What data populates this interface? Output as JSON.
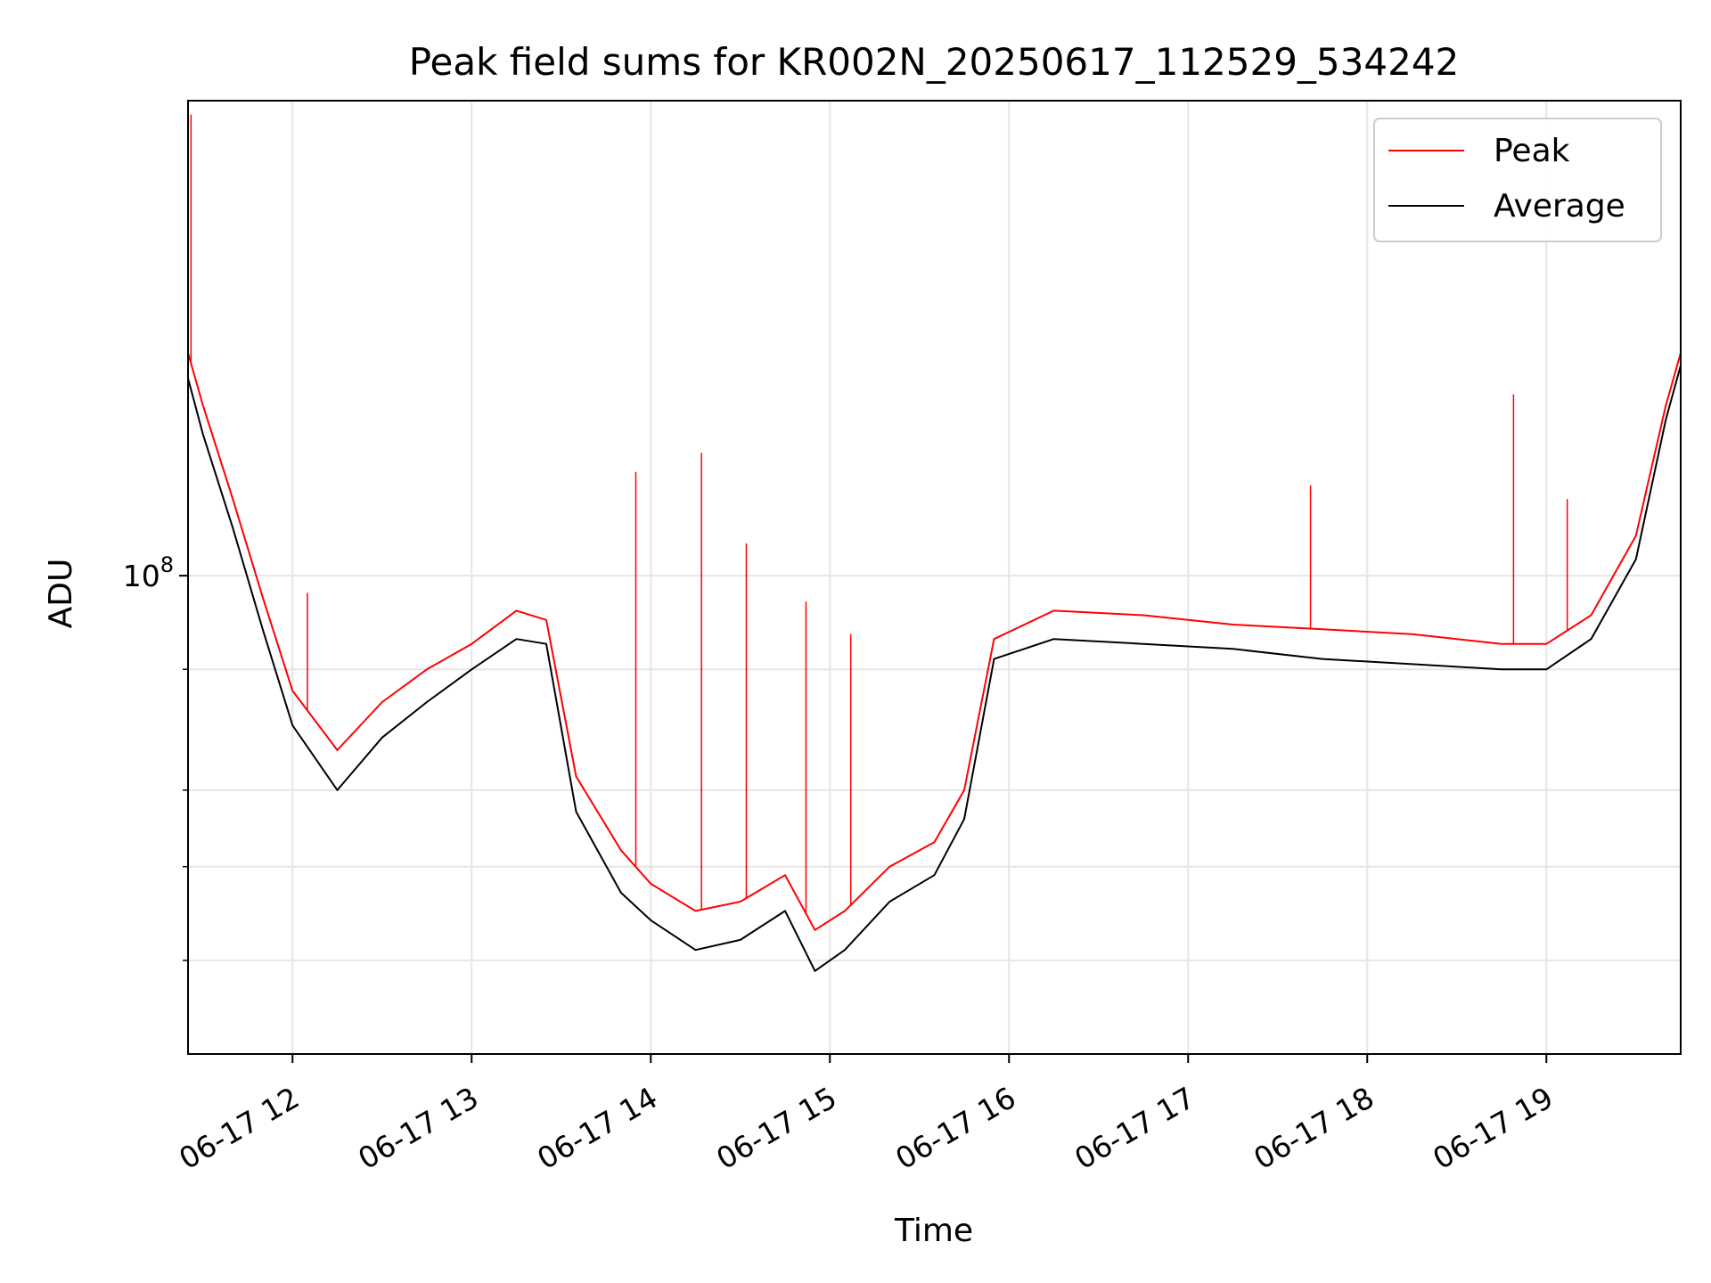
{
  "chart_data": {
    "type": "line",
    "title": "Peak field sums for KR002N_20250617_112529_534242",
    "xlabel": "Time",
    "ylabel": "ADU",
    "yscale": "log",
    "grid": true,
    "legend_position": "top-right",
    "x_tick_labels": [
      "06-17 12",
      "06-17 13",
      "06-17 14",
      "06-17 15",
      "06-17 16",
      "06-17 17",
      "06-17 18",
      "06-17 19"
    ],
    "x_tick_times": [
      "2025-06-17 12:00",
      "2025-06-17 13:00",
      "2025-06-17 14:00",
      "2025-06-17 15:00",
      "2025-06-17 16:00",
      "2025-06-17 17:00",
      "2025-06-17 18:00",
      "2025-06-17 19:00"
    ],
    "xlim": [
      "2025-06-17 11:25",
      "2025-06-17 19:45"
    ],
    "y_tick_label": "10^8",
    "y_tick_value": 100000000,
    "y_minor_ticks": [
      40000000,
      50000000,
      60000000,
      80000000
    ],
    "ylim": [
      32000000,
      310000000
    ],
    "x": [
      "2025-06-17 11:25",
      "2025-06-17 11:30",
      "2025-06-17 11:40",
      "2025-06-17 11:50",
      "2025-06-17 12:00",
      "2025-06-17 12:15",
      "2025-06-17 12:30",
      "2025-06-17 12:45",
      "2025-06-17 13:00",
      "2025-06-17 13:15",
      "2025-06-17 13:25",
      "2025-06-17 13:35",
      "2025-06-17 13:50",
      "2025-06-17 14:00",
      "2025-06-17 14:15",
      "2025-06-17 14:30",
      "2025-06-17 14:45",
      "2025-06-17 14:55",
      "2025-06-17 15:05",
      "2025-06-17 15:20",
      "2025-06-17 15:35",
      "2025-06-17 15:45",
      "2025-06-17 15:55",
      "2025-06-17 16:15",
      "2025-06-17 16:45",
      "2025-06-17 17:15",
      "2025-06-17 17:45",
      "2025-06-17 18:15",
      "2025-06-17 18:45",
      "2025-06-17 19:00",
      "2025-06-17 19:15",
      "2025-06-17 19:30",
      "2025-06-17 19:40",
      "2025-06-17 19:45"
    ],
    "series": [
      {
        "name": "Peak",
        "color": "#ff0000",
        "values": [
          170000000,
          150000000,
          120000000,
          95000000,
          76000000,
          66000000,
          74000000,
          80000000,
          85000000,
          92000000,
          90000000,
          62000000,
          52000000,
          48000000,
          45000000,
          46000000,
          49000000,
          43000000,
          45000000,
          50000000,
          53000000,
          60000000,
          86000000,
          92000000,
          91000000,
          89000000,
          88000000,
          87000000,
          85000000,
          85000000,
          91000000,
          110000000,
          150000000,
          170000000
        ]
      },
      {
        "name": "Average",
        "color": "#000000",
        "values": [
          160000000,
          140000000,
          112000000,
          88000000,
          70000000,
          60000000,
          68000000,
          74000000,
          80000000,
          86000000,
          85000000,
          57000000,
          47000000,
          44000000,
          41000000,
          42000000,
          45000000,
          39000000,
          41000000,
          46000000,
          49000000,
          56000000,
          82000000,
          86000000,
          85000000,
          84000000,
          82000000,
          81000000,
          80000000,
          80000000,
          86000000,
          104000000,
          145000000,
          165000000
        ]
      }
    ],
    "spikes": [
      {
        "series": "Peak",
        "x": "2025-06-17 11:26",
        "value": 300000000
      },
      {
        "series": "Peak",
        "x": "2025-06-17 12:05",
        "value": 96000000
      },
      {
        "series": "Peak",
        "x": "2025-06-17 13:55",
        "value": 128000000
      },
      {
        "series": "Peak",
        "x": "2025-06-17 14:17",
        "value": 134000000
      },
      {
        "series": "Peak",
        "x": "2025-06-17 14:32",
        "value": 108000000
      },
      {
        "series": "Peak",
        "x": "2025-06-17 14:52",
        "value": 94000000
      },
      {
        "series": "Peak",
        "x": "2025-06-17 15:07",
        "value": 87000000
      },
      {
        "series": "Peak",
        "x": "2025-06-17 17:41",
        "value": 124000000
      },
      {
        "series": "Peak",
        "x": "2025-06-17 18:49",
        "value": 154000000
      },
      {
        "series": "Peak",
        "x": "2025-06-17 19:07",
        "value": 120000000
      }
    ]
  }
}
